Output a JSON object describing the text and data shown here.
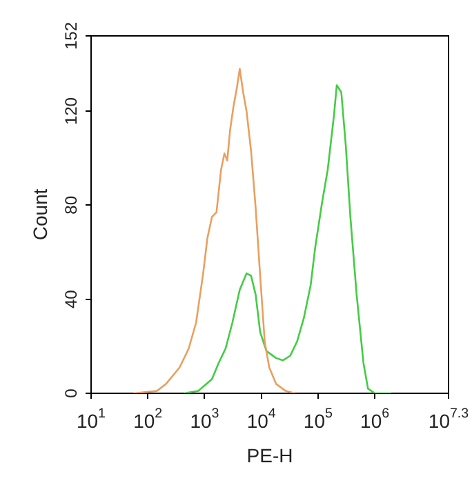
{
  "chart_data": {
    "type": "line",
    "xlabel": "PE-H",
    "ylabel": "Count",
    "log": "x",
    "xlim": [
      10,
      19952623
    ],
    "xticks": [
      {
        "value": 10,
        "label": "10$^{1}$"
      },
      {
        "value": 100,
        "label": "10$^{2}$"
      },
      {
        "value": 1000,
        "label": "10$^{3}$"
      },
      {
        "value": 10000,
        "label": "10$^{4}$"
      },
      {
        "value": 100000,
        "label": "10$^{5}$"
      },
      {
        "value": 1000000,
        "label": "10$^{6}$"
      },
      {
        "value": 19952623,
        "label": "10$^{7.3}$"
      }
    ],
    "ylim": [
      0,
      152
    ],
    "yticks": [
      0,
      40,
      80,
      120,
      152
    ],
    "grid": false,
    "legend": false,
    "marker": "none",
    "line_style": "solid",
    "series": [
      {
        "color": "#e8a060",
        "x": [
          56,
          145,
          209,
          363,
          525,
          708,
          933,
          1122,
          1349,
          1622,
          1950,
          2239,
          2512,
          2818,
          3236,
          3715,
          4169,
          4786,
          5495,
          6607,
          7943,
          9550,
          11482,
          13804,
          18197,
          26915,
          38905
        ],
        "values": [
          0,
          1,
          4,
          11,
          19,
          30,
          50,
          66,
          75,
          77,
          95,
          102,
          99,
          112,
          122,
          130,
          138,
          128,
          120,
          103,
          79,
          50,
          22,
          11,
          4,
          1,
          0
        ]
      },
      {
        "color": "#44cc44",
        "x": [
          437,
          776,
          1349,
          1778,
          2344,
          3090,
          4169,
          5495,
          6607,
          7943,
          9550,
          12303,
          18197,
          23988,
          32359,
          42658,
          56234,
          74131,
          89125,
          117490,
          147911,
          190546,
          213796,
          257040,
          309030,
          371535,
          478630,
          630957,
          758578,
          1000000,
          1949845
        ],
        "values": [
          0,
          1,
          6,
          13,
          19,
          30,
          44,
          51,
          50,
          42,
          26,
          18,
          15,
          14,
          16,
          22,
          32,
          46,
          62,
          81,
          95,
          118,
          131,
          128,
          105,
          75,
          42,
          13,
          2,
          0,
          0
        ]
      }
    ]
  }
}
